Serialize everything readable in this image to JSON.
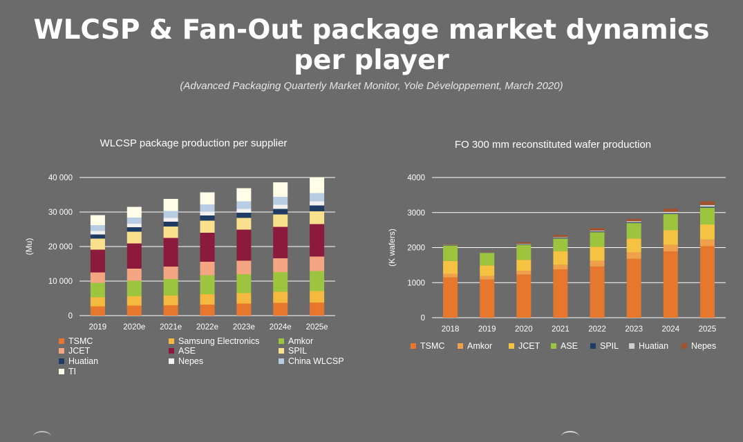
{
  "title_line1": "WLCSP & Fan-Out package market dynamics",
  "title_line2": "per player",
  "subtitle": "(Advanced Packaging Quarterly Market Monitor, Yole Développement, March 2020)",
  "chart_data": [
    {
      "type": "bar",
      "stacked": true,
      "title": "WLCSP package production per supplier",
      "ylabel": "(Mu)",
      "xlabel": "",
      "ylim": [
        0,
        40000
      ],
      "yticks": [
        0,
        10000,
        20000,
        30000,
        40000
      ],
      "ytick_labels": [
        "0",
        "10 000",
        "20 000",
        "30 000",
        "40 000"
      ],
      "categories": [
        "2019",
        "2020e",
        "2021e",
        "2022e",
        "2023e",
        "2024e",
        "2025e"
      ],
      "series": [
        {
          "name": "TSMC",
          "color": "#e8772e",
          "values": [
            2700,
            2900,
            3000,
            3200,
            3500,
            3700,
            3800
          ]
        },
        {
          "name": "Samsung Electronics",
          "color": "#f5b940",
          "values": [
            2600,
            2700,
            2800,
            3000,
            3000,
            3200,
            3300
          ]
        },
        {
          "name": "Amkor",
          "color": "#9cc43e",
          "values": [
            4200,
            4500,
            4800,
            5500,
            5500,
            5700,
            5800
          ]
        },
        {
          "name": "JCET",
          "color": "#f4a582",
          "values": [
            3000,
            3500,
            3600,
            3900,
            3900,
            4000,
            4200
          ]
        },
        {
          "name": "ASE",
          "color": "#8c1a3c",
          "values": [
            6600,
            7300,
            8300,
            8400,
            9000,
            9100,
            9400
          ]
        },
        {
          "name": "SPIL",
          "color": "#f9e08c",
          "values": [
            3200,
            3400,
            3300,
            3500,
            3400,
            3600,
            3700
          ]
        },
        {
          "name": "Huatian",
          "color": "#1f3b63",
          "values": [
            1200,
            1300,
            1400,
            1500,
            1500,
            1600,
            1700
          ]
        },
        {
          "name": "Nepes",
          "color": "#f3f0f0",
          "values": [
            1000,
            1000,
            1100,
            1100,
            1100,
            1200,
            1200
          ]
        },
        {
          "name": "China WLCSP",
          "color": "#b8cce4",
          "values": [
            1700,
            1800,
            2000,
            2100,
            2200,
            2300,
            2400
          ]
        },
        {
          "name": "TI",
          "color": "#fffde7",
          "values": [
            2900,
            3100,
            3500,
            3500,
            3800,
            4200,
            4600
          ]
        }
      ]
    },
    {
      "type": "bar",
      "stacked": true,
      "title": "FO 300 mm reconstituted wafer production",
      "ylabel": "(K wafers)",
      "xlabel": "",
      "ylim": [
        0,
        4000
      ],
      "yticks": [
        0,
        1000,
        2000,
        3000,
        4000
      ],
      "ytick_labels": [
        "0",
        "1000",
        "2000",
        "3000",
        "4000"
      ],
      "categories": [
        "2018",
        "2019",
        "2020",
        "2021",
        "2022",
        "2023",
        "2024",
        "2025"
      ],
      "series": [
        {
          "name": "TSMC",
          "color": "#e8772e",
          "values": [
            1150,
            1090,
            1230,
            1380,
            1460,
            1680,
            1890,
            2040
          ]
        },
        {
          "name": "Amkor",
          "color": "#f0a04b",
          "values": [
            100,
            100,
            110,
            130,
            160,
            180,
            190,
            190
          ]
        },
        {
          "name": "JCET",
          "color": "#f5c242",
          "values": [
            370,
            300,
            310,
            390,
            400,
            400,
            420,
            430
          ]
        },
        {
          "name": "ASE",
          "color": "#9cc43e",
          "values": [
            440,
            360,
            430,
            360,
            420,
            440,
            460,
            480
          ]
        },
        {
          "name": "SPIL",
          "color": "#1f3b63",
          "values": [
            15,
            15,
            15,
            20,
            20,
            20,
            20,
            25
          ]
        },
        {
          "name": "Huatian",
          "color": "#cfcfcf",
          "values": [
            10,
            10,
            15,
            20,
            25,
            30,
            40,
            50
          ]
        },
        {
          "name": "Nepes",
          "color": "#a0522d",
          "values": [
            15,
            15,
            40,
            60,
            70,
            70,
            90,
            105
          ]
        }
      ]
    }
  ]
}
